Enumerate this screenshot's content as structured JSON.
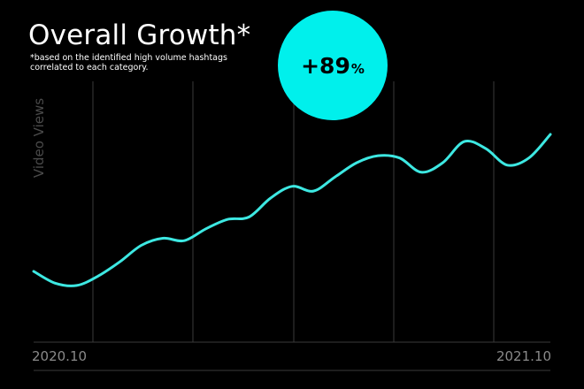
{
  "title": "Overall Growth*",
  "subtitle": "*based on the identified high volume hashtags correlated to each category.",
  "badge": {
    "value": "+89",
    "unit": "%",
    "color": "#00f0ec"
  },
  "colors": {
    "background": "#000000",
    "line": "#3de8e2",
    "grid": "#3a3a3a"
  },
  "chart_data": {
    "type": "line",
    "title": "Overall Growth*",
    "ylabel": "Video Views",
    "xlabel": "",
    "x_tick_labels": [
      "2020.10",
      "2021.10"
    ],
    "x": [
      0,
      1,
      2,
      3,
      4,
      5,
      6,
      7,
      8,
      9,
      10,
      11,
      12,
      13,
      14,
      15,
      16,
      17,
      18,
      19,
      20,
      21,
      22,
      23,
      24
    ],
    "values": [
      30,
      25,
      24,
      28,
      34,
      41,
      44,
      43,
      48,
      52,
      53,
      61,
      66,
      64,
      70,
      76,
      79,
      78,
      72,
      76,
      85,
      82,
      75,
      78,
      88
    ],
    "ylim": [
      0,
      100
    ],
    "grid": {
      "vertical": true,
      "horizontal": false
    },
    "growth_label": "+89%"
  }
}
